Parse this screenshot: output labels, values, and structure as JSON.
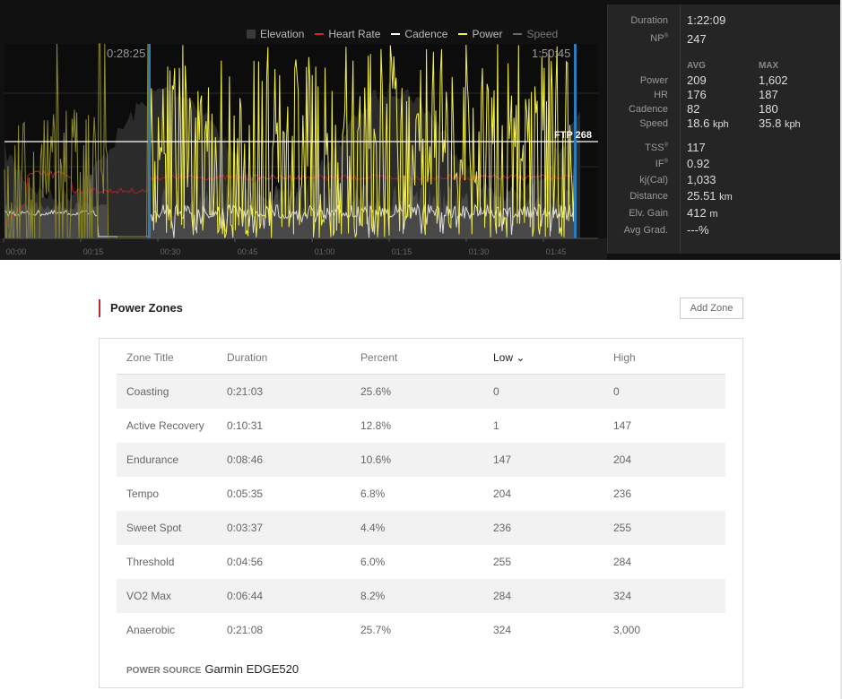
{
  "chart": {
    "legend": [
      {
        "label": "Elevation",
        "color": "#3a3a3a"
      },
      {
        "label": "Heart Rate",
        "color": "#d0242a"
      },
      {
        "label": "Cadence",
        "color": "#ffffff"
      },
      {
        "label": "Power",
        "color": "#f4f04a"
      },
      {
        "label": "Speed",
        "color": "#666666"
      }
    ],
    "selection_start": "0:28:25",
    "selection_end": "1:50:45",
    "ftp_label": "FTP 268",
    "zero_label": "0",
    "x_ticks": [
      "00:00",
      "00:15",
      "00:30",
      "00:45",
      "01:00",
      "01:15",
      "01:30",
      "01:45"
    ]
  },
  "stats": {
    "duration_label": "Duration",
    "duration": "1:22:09",
    "np_label": "NP",
    "np": "247",
    "avg_header": "AVG",
    "max_header": "MAX",
    "rows": [
      {
        "label": "Power",
        "avg": "209",
        "max": "1,602",
        "unit": ""
      },
      {
        "label": "HR",
        "avg": "176",
        "max": "187",
        "unit": ""
      },
      {
        "label": "Cadence",
        "avg": "82",
        "max": "180",
        "unit": ""
      },
      {
        "label": "Speed",
        "avg": "18.6",
        "max": "35.8",
        "unit": "kph"
      }
    ],
    "tss_label": "TSS",
    "tss": "117",
    "if_label": "IF",
    "if": "0.92",
    "kj_label": "kj(Cal)",
    "kj": "1,033",
    "distance_label": "Distance",
    "distance": "25.51",
    "distance_unit": "km",
    "elv_label": "Elv. Gain",
    "elv": "412",
    "elv_unit": "m",
    "grad_label": "Avg Grad.",
    "grad": "---%",
    "reg": "®"
  },
  "zones": {
    "title": "Power Zones",
    "add_button": "Add Zone",
    "headers": [
      "Zone Title",
      "Duration",
      "Percent",
      "Low ⌄",
      "High"
    ],
    "rows": [
      [
        "Coasting",
        "0:21:03",
        "25.6%",
        "0",
        "0"
      ],
      [
        "Active Recovery",
        "0:10:31",
        "12.8%",
        "1",
        "147"
      ],
      [
        "Endurance",
        "0:08:46",
        "10.6%",
        "147",
        "204"
      ],
      [
        "Tempo",
        "0:05:35",
        "6.8%",
        "204",
        "236"
      ],
      [
        "Sweet Spot",
        "0:03:37",
        "4.4%",
        "236",
        "255"
      ],
      [
        "Threshold",
        "0:04:56",
        "6.0%",
        "255",
        "284"
      ],
      [
        "VO2 Max",
        "0:06:44",
        "8.2%",
        "284",
        "324"
      ],
      [
        "Anaerobic",
        "0:21:08",
        "25.7%",
        "324",
        "3,000"
      ]
    ],
    "source_label": "POWER SOURCE",
    "source": "Garmin EDGE520"
  }
}
